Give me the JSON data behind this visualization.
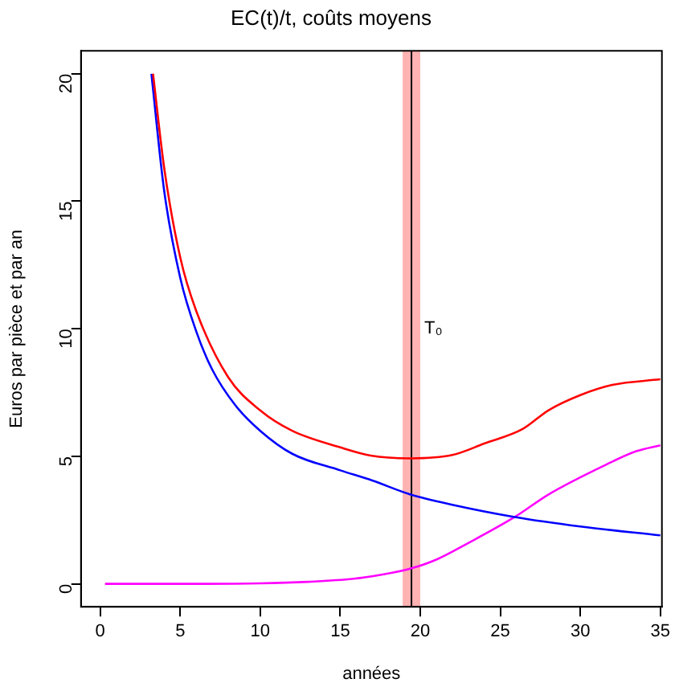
{
  "chart_data": {
    "type": "line",
    "title": "EC(t)/t, coûts moyens",
    "xlabel": "années",
    "ylabel": "Euros par pièce et par an",
    "xlim": [
      -1.2,
      35.1
    ],
    "ylim": [
      -0.9,
      20.9
    ],
    "xticks": [
      0,
      5,
      10,
      15,
      20,
      25,
      30,
      35
    ],
    "yticks": [
      0,
      5,
      10,
      15,
      20
    ],
    "grid": false,
    "legend": false,
    "marker": "none",
    "line_style": "solid",
    "series": [
      {
        "color": "#ff0000",
        "x": [
          3.3,
          4,
          5,
          6,
          8,
          10,
          12,
          15,
          16.9,
          19.4,
          22,
          24,
          26.4,
          28,
          30,
          32,
          35
        ],
        "values": [
          20,
          16.3,
          12.8,
          10.7,
          8.1,
          6.8,
          6,
          5.35,
          5.03,
          4.92,
          5.05,
          5.5,
          6.07,
          6.8,
          7.4,
          7.8,
          8.02
        ]
      },
      {
        "color": "#0000ff",
        "x": [
          3.2,
          4,
          5,
          6,
          7,
          8.46,
          10,
          12,
          15,
          17,
          19.4,
          22,
          25.9,
          30,
          35
        ],
        "values": [
          20,
          15.4,
          12,
          9.9,
          8.4,
          6.99,
          6,
          5.1,
          4.45,
          4.05,
          3.5,
          3.1,
          2.62,
          2.25,
          1.9
        ]
      },
      {
        "color": "#ff00ff",
        "x": [
          0.3,
          5,
          10,
          13,
          15.85,
          17.5,
          19.4,
          21,
          23,
          25.9,
          28,
          31.7,
          33.5,
          35
        ],
        "values": [
          0,
          0,
          0.02,
          0.08,
          0.2,
          0.35,
          0.6,
          0.95,
          1.6,
          2.62,
          3.5,
          4.7,
          5.2,
          5.43
        ]
      }
    ],
    "bands": [
      {
        "axis": "x",
        "from": 18.9,
        "to": 20,
        "color": "#ff0000"
      }
    ],
    "ref_lines": [
      {
        "axis": "x",
        "value": 19.45,
        "label": "T₀",
        "color": "#000000"
      }
    ]
  }
}
